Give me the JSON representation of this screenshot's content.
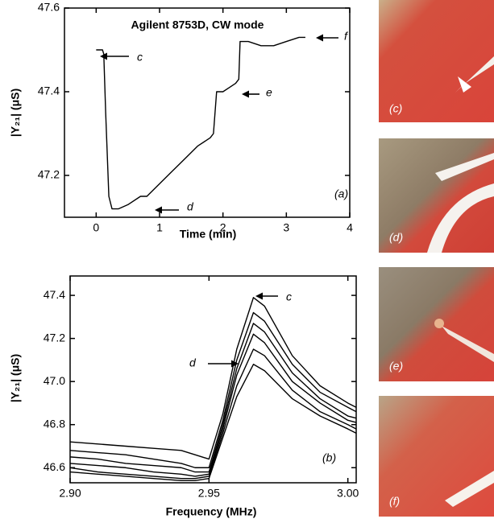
{
  "chart_data": [
    {
      "type": "line",
      "title": "Agilent 8753D, CW mode",
      "x_label": "Time (min)",
      "y_label": "|Y₂₁| (μS)",
      "panel_label": "(a)",
      "annotations": [
        "c",
        "d",
        "e",
        "f"
      ],
      "color": "#000000",
      "x": [
        0.0,
        0.1,
        0.12,
        0.15,
        0.2,
        0.25,
        0.35,
        0.5,
        0.7,
        0.8,
        1.0,
        1.2,
        1.4,
        1.6,
        1.8,
        1.85,
        1.9,
        2.0,
        2.1,
        2.2,
        2.25,
        2.27,
        2.4,
        2.6,
        2.8,
        3.0,
        3.2,
        3.3
      ],
      "values": [
        47.5,
        47.5,
        47.49,
        47.35,
        47.15,
        47.12,
        47.12,
        47.13,
        47.15,
        47.15,
        47.18,
        47.21,
        47.24,
        47.27,
        47.29,
        47.3,
        47.4,
        47.4,
        47.41,
        47.42,
        47.43,
        47.52,
        47.52,
        47.51,
        47.51,
        47.52,
        47.53,
        47.53
      ],
      "xlim": [
        -0.5,
        4
      ],
      "xticks": [
        0,
        1,
        2,
        3,
        4
      ],
      "ylim": [
        47.1,
        47.6
      ],
      "yticks": [
        47.2,
        47.4,
        47.6
      ]
    },
    {
      "type": "line",
      "x_label": "Frequency (MHz)",
      "y_label": "|Y₂₁| (μS)",
      "panel_label": "(b)",
      "annotations": [
        "c",
        "d"
      ],
      "x": [
        2.9,
        2.91,
        2.92,
        2.93,
        2.94,
        2.945,
        2.95,
        2.955,
        2.96,
        2.966,
        2.97,
        2.98,
        2.99,
        3.0,
        3.003
      ],
      "series": [
        {
          "color": "#000000",
          "values": [
            46.72,
            46.71,
            46.7,
            46.69,
            46.68,
            46.66,
            46.64,
            46.85,
            47.15,
            47.39,
            47.35,
            47.12,
            46.98,
            46.9,
            46.88
          ]
        },
        {
          "color": "#000000",
          "values": [
            46.68,
            46.67,
            46.66,
            46.64,
            46.62,
            46.6,
            46.6,
            46.82,
            47.1,
            47.32,
            47.28,
            47.08,
            46.95,
            46.88,
            46.86
          ]
        },
        {
          "color": "#000000",
          "values": [
            46.65,
            46.64,
            46.62,
            46.61,
            46.6,
            46.58,
            46.58,
            46.8,
            47.06,
            47.27,
            47.23,
            47.04,
            46.92,
            46.84,
            46.83
          ]
        },
        {
          "color": "#000000",
          "values": [
            46.62,
            46.61,
            46.6,
            46.58,
            46.57,
            46.56,
            46.57,
            46.78,
            47.03,
            47.22,
            47.18,
            47.0,
            46.9,
            46.82,
            46.81
          ]
        },
        {
          "color": "#000000",
          "values": [
            46.6,
            46.58,
            46.57,
            46.56,
            46.55,
            46.55,
            46.56,
            46.76,
            46.98,
            47.15,
            47.12,
            46.96,
            46.86,
            46.8,
            46.78
          ]
        },
        {
          "color": "#000000",
          "values": [
            46.58,
            46.57,
            46.56,
            46.55,
            46.54,
            46.54,
            46.55,
            46.74,
            46.93,
            47.08,
            47.05,
            46.92,
            46.84,
            46.78,
            46.76
          ]
        }
      ],
      "xlim": [
        2.9,
        3.003
      ],
      "xticks": [
        {
          "value": 2.9,
          "label": "2.90"
        },
        2.95,
        {
          "value": 3.0,
          "label": "3.00"
        }
      ],
      "ylim": [
        46.53,
        47.49
      ],
      "yticks": [
        46.6,
        46.8,
        {
          "value": 47.0,
          "label": "47.0"
        },
        47.2,
        47.4
      ]
    }
  ],
  "photo_labels": [
    "(c)",
    "(d)",
    "(e)",
    "(f)"
  ]
}
